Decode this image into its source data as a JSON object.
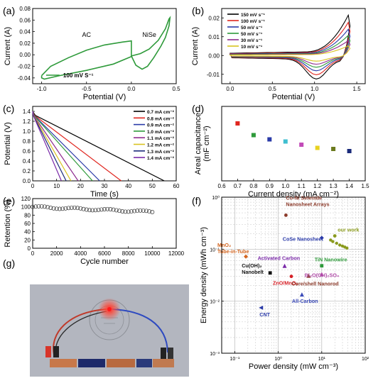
{
  "colors": {
    "green": "#2e9a3a",
    "nicolor": "#d61f26",
    "black": "#000000",
    "grid": "#b8b8b8"
  },
  "panels": {
    "a": {
      "label": "(a)"
    },
    "b": {
      "label": "(b)"
    },
    "c": {
      "label": "(c)"
    },
    "d": {
      "label": "(d)"
    },
    "e": {
      "label": "(e)"
    },
    "f": {
      "label": "(f)"
    },
    "g": {
      "label": "(g)"
    }
  },
  "chart_data": [
    {
      "panel": "a",
      "type": "line",
      "xlabel": "Potential (V)",
      "ylabel": "Current (A)",
      "xlim": [
        -1.1,
        0.5
      ],
      "ylim": [
        -0.05,
        0.08
      ],
      "xticks": [
        -1.0,
        -0.5,
        0.0,
        0.5
      ],
      "xtick_labels": [
        "-1.0",
        "-0.5",
        "0.0",
        "0.5"
      ],
      "yticks": [
        -0.04,
        -0.02,
        0.0,
        0.02,
        0.04,
        0.06,
        0.08
      ],
      "ytick_labels": [
        "-0.04",
        "-0.02",
        "0.00",
        "0.02",
        "0.04",
        "0.06",
        "0.08"
      ],
      "legend": "100 mV S⁻¹",
      "annotations": [
        {
          "text": "AC",
          "x": -0.5,
          "y": 0.031
        },
        {
          "text": "NiSe",
          "x": 0.2,
          "y": 0.031
        }
      ],
      "series": [
        {
          "role": "AC",
          "color": "#2e9a3a",
          "points": [
            [
              -1.0,
              -0.036
            ],
            [
              -0.9,
              -0.02
            ],
            [
              -0.7,
              -0.005
            ],
            [
              -0.5,
              0.008
            ],
            [
              -0.3,
              0.017
            ],
            [
              -0.1,
              0.022
            ],
            [
              0.0,
              0.024
            ],
            [
              0.0,
              -0.003
            ],
            [
              -0.2,
              -0.016
            ],
            [
              -0.5,
              -0.027
            ],
            [
              -0.8,
              -0.036
            ],
            [
              -0.97,
              -0.042
            ],
            [
              -1.0,
              -0.04
            ],
            [
              -1.0,
              -0.036
            ]
          ]
        },
        {
          "role": "NiSe",
          "color": "#2e9a3a",
          "points": [
            [
              0.0,
              -0.002
            ],
            [
              0.1,
              0.002
            ],
            [
              0.2,
              0.01
            ],
            [
              0.3,
              0.025
            ],
            [
              0.38,
              0.045
            ],
            [
              0.42,
              0.062
            ],
            [
              0.43,
              0.064
            ],
            [
              0.42,
              0.05
            ],
            [
              0.38,
              0.03
            ],
            [
              0.33,
              0.015
            ],
            [
              0.25,
              -0.005
            ],
            [
              0.18,
              -0.02
            ],
            [
              0.12,
              -0.025
            ],
            [
              0.05,
              -0.018
            ],
            [
              0.0,
              -0.002
            ]
          ]
        }
      ]
    },
    {
      "panel": "b",
      "type": "line",
      "xlabel": "Potential (V)",
      "ylabel": "Current (A)",
      "xlim": [
        -0.1,
        1.6
      ],
      "ylim": [
        -0.015,
        0.025
      ],
      "xticks": [
        0.0,
        0.5,
        1.0,
        1.5
      ],
      "xtick_labels": [
        "0.0",
        "0.5",
        "1.0",
        "1.5"
      ],
      "yticks": [
        -0.01,
        0.0,
        0.01,
        0.02
      ],
      "ytick_labels": [
        "-0.01",
        "0.00",
        "0.01",
        "0.02"
      ],
      "series": [
        {
          "name": "150 mV s⁻¹",
          "color": "#000000",
          "scale": 1.0
        },
        {
          "name": "100 mV s⁻¹",
          "color": "#e0261f",
          "scale": 0.82
        },
        {
          "name": "50 mV s⁻¹",
          "color": "#2a3aa8",
          "scale": 0.65
        },
        {
          "name": "50 mV s⁻¹",
          "color": "#2e9a3a",
          "scale": 0.5
        },
        {
          "name": "30 mV s⁻¹",
          "color": "#8e2a8e",
          "scale": 0.37
        },
        {
          "name": "10 mV s⁻¹",
          "color": "#d9c320",
          "scale": 0.24
        }
      ]
    },
    {
      "panel": "c",
      "type": "line",
      "xlabel": "Time (s)",
      "ylabel": "Potential (V)",
      "xlim": [
        0,
        60
      ],
      "ylim": [
        0,
        1.5
      ],
      "xticks": [
        0,
        10,
        20,
        30,
        40,
        50,
        60
      ],
      "xtick_labels": [
        "0",
        "10",
        "20",
        "30",
        "40",
        "50",
        "60"
      ],
      "yticks": [
        0.0,
        0.2,
        0.4,
        0.6,
        0.8,
        1.0,
        1.2,
        1.4
      ],
      "ytick_labels": [
        "0.0",
        "0.2",
        "0.4",
        "0.6",
        "0.8",
        "1.0",
        "1.2",
        "1.4"
      ],
      "series": [
        {
          "name": "0.7 mA cm⁻²",
          "color": "#000000",
          "t_end": 55
        },
        {
          "name": "0.8 mA cm⁻²",
          "color": "#e0261f",
          "t_end": 37
        },
        {
          "name": "0.9 mA cm⁻²",
          "color": "#2a3aa8",
          "t_end": 28
        },
        {
          "name": "1.0 mA cm⁻²",
          "color": "#2e9a3a",
          "t_end": 25
        },
        {
          "name": "1.1 mA cm⁻²",
          "color": "#8e2a8e",
          "t_end": 19
        },
        {
          "name": "1.2 mA cm⁻²",
          "color": "#d9c320",
          "t_end": 16
        },
        {
          "name": "1.3 mA cm⁻²",
          "color": "#1a2a7a",
          "t_end": 14
        },
        {
          "name": "1.4 mA cm⁻²",
          "color": "#7a2aa8",
          "t_end": 12
        }
      ]
    },
    {
      "panel": "d",
      "type": "scatter",
      "xlabel": "Current density (mA cm⁻²)",
      "ylabel": "Areal capacitance\n(mF cm⁻²)",
      "xlim": [
        0.6,
        1.5
      ],
      "ylim": [
        0,
        35
      ],
      "xticks": [
        0.6,
        0.7,
        0.8,
        0.9,
        1.0,
        1.1,
        1.2,
        1.3,
        1.4,
        1.5
      ],
      "xtick_labels": [
        "0.6",
        "0.7",
        "0.8",
        "0.9",
        "1.0",
        "1.1",
        "1.2",
        "1.3",
        "1.4",
        "1.5"
      ],
      "yticks": [],
      "points": [
        {
          "x": 0.7,
          "y": 27.0,
          "color": "#e0261f"
        },
        {
          "x": 0.8,
          "y": 21.5,
          "color": "#2e9a3a"
        },
        {
          "x": 0.9,
          "y": 19.5,
          "color": "#2a3aa8"
        },
        {
          "x": 1.0,
          "y": 18.5,
          "color": "#3fbfd0"
        },
        {
          "x": 1.1,
          "y": 17.0,
          "color": "#c24ab8"
        },
        {
          "x": 1.2,
          "y": 15.5,
          "color": "#e8d21f"
        },
        {
          "x": 1.3,
          "y": 15.0,
          "color": "#6b7a1e"
        },
        {
          "x": 1.4,
          "y": 14.0,
          "color": "#1a2a7a"
        }
      ]
    },
    {
      "panel": "e",
      "type": "scatter",
      "xlabel": "Cycle number",
      "ylabel": "Retention (%)",
      "xlim": [
        0,
        12000
      ],
      "ylim": [
        0,
        120
      ],
      "xticks": [
        0,
        2000,
        4000,
        6000,
        8000,
        10000,
        12000
      ],
      "xtick_labels": [
        "0",
        "2000",
        "4000",
        "6000",
        "8000",
        "10000",
        "12000"
      ],
      "yticks": [
        0,
        20,
        40,
        60,
        80,
        100,
        120
      ],
      "ytick_labels": [
        "0",
        "20",
        "40",
        "60",
        "80",
        "100",
        "120"
      ],
      "points_spec": {
        "x_start": 0,
        "x_end": 10000,
        "step": 250,
        "y_start": 100,
        "y_end": 88
      },
      "marker": "open-circle"
    },
    {
      "panel": "f",
      "type": "scatter",
      "xlabel": "Power density (mW cm⁻³)",
      "ylabel": "Energy density (mWh cm⁻³)",
      "xscale": "log",
      "yscale": "log",
      "xlim": [
        0.05,
        100
      ],
      "ylim": [
        0.001,
        1
      ],
      "xticks": [
        0.1,
        1,
        10,
        100
      ],
      "xtick_labels": [
        "10⁻¹",
        "10⁰",
        "10¹",
        "10²"
      ],
      "yticks": [
        0.001,
        0.01,
        0.1,
        1
      ],
      "ytick_labels": [
        "10⁻³",
        "10⁻²",
        "10⁻¹",
        "10⁰"
      ],
      "points": [
        {
          "label": "Co-Ni Selenide\nNanosheet Arrays",
          "x": 1.5,
          "y": 0.45,
          "color": "#8b3a2a",
          "shape": "circle"
        },
        {
          "label": "MnO₂\nTube-in-Tube",
          "x": 0.18,
          "y": 0.072,
          "color": "#d4651f",
          "shape": "diamond"
        },
        {
          "label": "CoSe Nanosheet",
          "x": 10,
          "y": 0.165,
          "color": "#2a3aa8",
          "shape": "diamond"
        },
        {
          "label": "our work",
          "x": 20,
          "y": 0.18,
          "color": "#8a9a1e",
          "shape": "circle"
        },
        {
          "label": "Activated Carbon",
          "x": 1.4,
          "y": 0.048,
          "color": "#7a2aa8",
          "shape": "triangle"
        },
        {
          "label": "TiN Nanowire",
          "x": 10,
          "y": 0.048,
          "color": "#2e9a3a",
          "shape": "square"
        },
        {
          "label": "Cu(OH)₂\nNanobelt",
          "x": 0.65,
          "y": 0.035,
          "color": "#111111",
          "shape": "square"
        },
        {
          "label": "ZnO/MnO₂",
          "x": 2.0,
          "y": 0.03,
          "color": "#d61f26",
          "shape": "circle"
        },
        {
          "label": "Core/shell Nanorod",
          "x": 5.0,
          "y": 0.031,
          "color": "#8b3a2a",
          "shape": "triangle"
        },
        {
          "label": "Bi₂O(OH)₂SO₄",
          "x": 10,
          "y": 0.033,
          "color": "#b04aa8",
          "shape": "triangle"
        },
        {
          "label": "All-Carbon",
          "x": 3.5,
          "y": 0.0135,
          "color": "#3a4ab8",
          "shape": "triangle"
        },
        {
          "label": "CNT",
          "x": 0.4,
          "y": 0.0075,
          "color": "#2a3aa8",
          "shape": "triangle-left"
        }
      ]
    }
  ]
}
